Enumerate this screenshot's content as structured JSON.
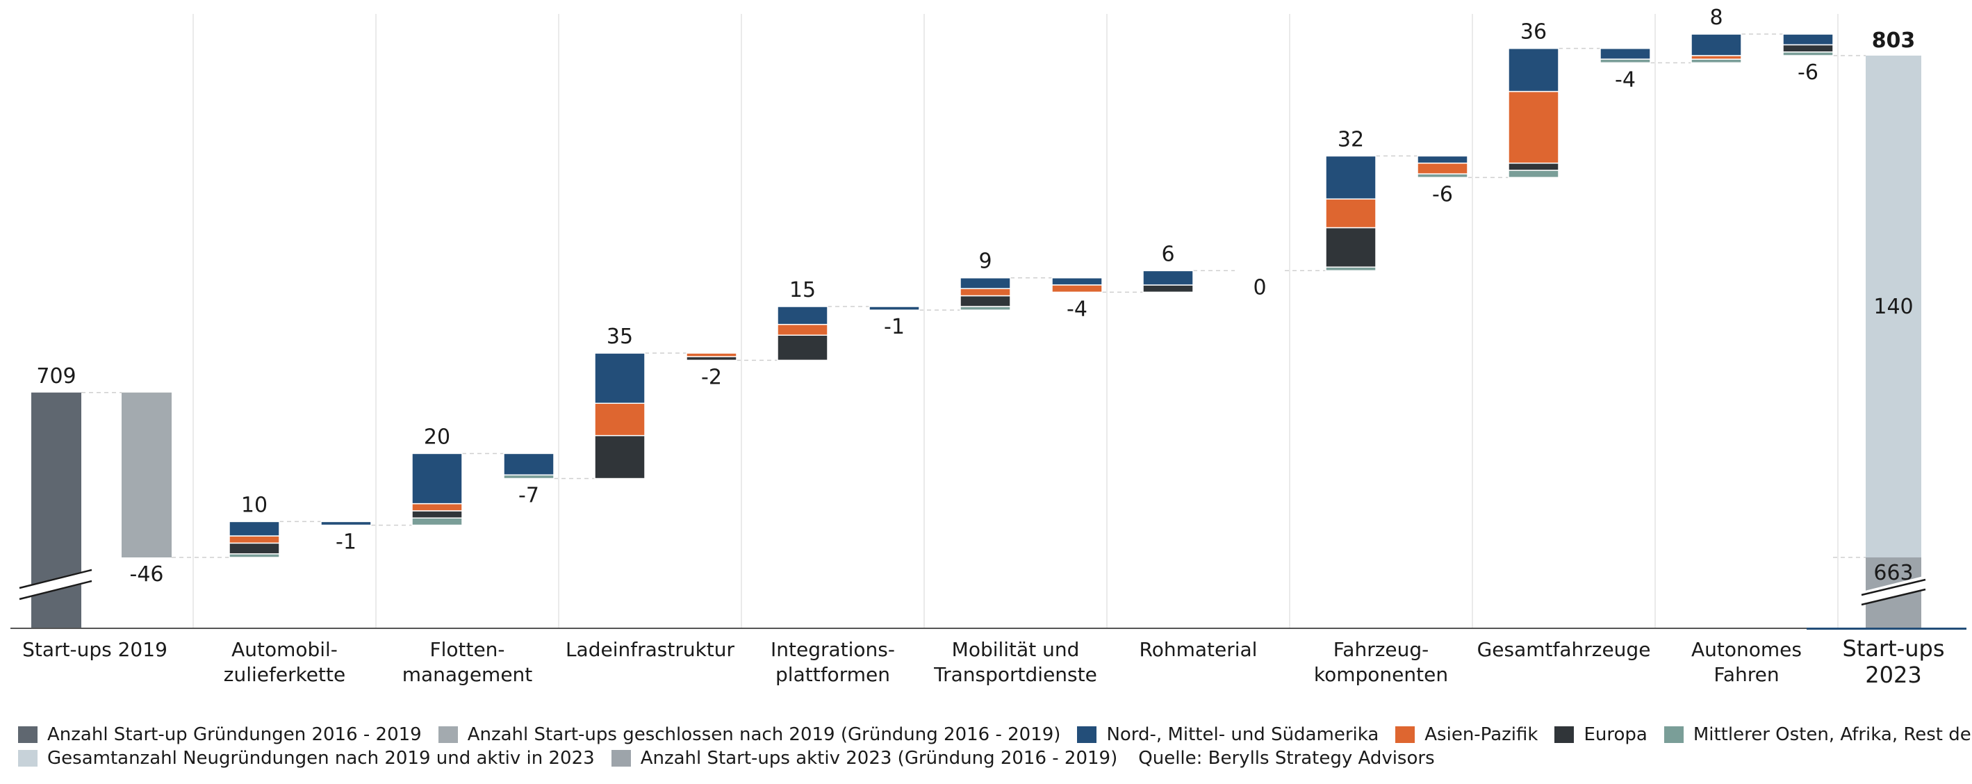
{
  "chart_data": {
    "type": "bar",
    "subtype": "waterfall",
    "categories": [
      [
        "Start-ups 2019"
      ],
      [
        "Automobil-",
        "zulieferkette"
      ],
      [
        "Flotten-",
        "management"
      ],
      [
        "Ladeinfrastruktur"
      ],
      [
        "Integrations-",
        "plattformen"
      ],
      [
        "Mobilität und",
        "Transportdienste"
      ],
      [
        "Rohmaterial"
      ],
      [
        "Fahrzeug-",
        "komponenten"
      ],
      [
        "Gesamtfahrzeuge"
      ],
      [
        "Autonomes",
        "Fahren"
      ],
      [
        "Start-ups",
        "2023"
      ]
    ],
    "start": {
      "founded_2016_2019": 709,
      "founded_label": "709",
      "closed_after_2019": -46,
      "closed_label": "-46"
    },
    "steps": [
      {
        "category_index": 1,
        "new": 10,
        "new_label": "10",
        "new_split": {
          "americas": 4,
          "apac": 2,
          "europe": 3,
          "mea_row": 1
        },
        "closed": -1,
        "closed_label": "-1",
        "closed_split": {
          "americas": 1,
          "apac": 0,
          "europe": 0,
          "mea_row": 0
        }
      },
      {
        "category_index": 2,
        "new": 20,
        "new_label": "20",
        "new_split": {
          "americas": 14,
          "apac": 2,
          "europe": 2,
          "mea_row": 2
        },
        "closed": -7,
        "closed_label": "-7",
        "closed_split": {
          "americas": 6,
          "apac": 0,
          "europe": 0,
          "mea_row": 1
        }
      },
      {
        "category_index": 3,
        "new": 35,
        "new_label": "35",
        "new_split": {
          "americas": 14,
          "apac": 9,
          "europe": 12,
          "mea_row": 0
        },
        "closed": -2,
        "closed_label": "-2",
        "closed_split": {
          "americas": 0,
          "apac": 1,
          "europe": 1,
          "mea_row": 0
        }
      },
      {
        "category_index": 4,
        "new": 15,
        "new_label": "15",
        "new_split": {
          "americas": 5,
          "apac": 3,
          "europe": 7,
          "mea_row": 0
        },
        "closed": -1,
        "closed_label": "-1",
        "closed_split": {
          "americas": 1,
          "apac": 0,
          "europe": 0,
          "mea_row": 0
        }
      },
      {
        "category_index": 5,
        "new": 9,
        "new_label": "9",
        "new_split": {
          "americas": 3,
          "apac": 2,
          "europe": 3,
          "mea_row": 1
        },
        "closed": -4,
        "closed_label": "-4",
        "closed_split": {
          "americas": 2,
          "apac": 2,
          "europe": 0,
          "mea_row": 0
        }
      },
      {
        "category_index": 6,
        "new": 6,
        "new_label": "6",
        "new_split": {
          "americas": 4,
          "apac": 0,
          "europe": 2,
          "mea_row": 0
        },
        "closed": 0,
        "closed_label": "0",
        "closed_split": {
          "americas": 0,
          "apac": 0,
          "europe": 0,
          "mea_row": 0
        }
      },
      {
        "category_index": 7,
        "new": 32,
        "new_label": "32",
        "new_split": {
          "americas": 12,
          "apac": 8,
          "europe": 11,
          "mea_row": 1
        },
        "closed": -6,
        "closed_label": "-6",
        "closed_split": {
          "americas": 2,
          "apac": 3,
          "europe": 0,
          "mea_row": 1
        }
      },
      {
        "category_index": 8,
        "new": 36,
        "new_label": "36",
        "new_split": {
          "americas": 12,
          "apac": 20,
          "europe": 2,
          "mea_row": 2
        },
        "closed": -4,
        "closed_label": "-4",
        "closed_split": {
          "americas": 3,
          "apac": 0,
          "europe": 0,
          "mea_row": 1
        }
      },
      {
        "category_index": 9,
        "new": 8,
        "new_label": "8",
        "new_split": {
          "americas": 6,
          "apac": 1,
          "europe": 0,
          "mea_row": 1
        },
        "closed": -6,
        "closed_label": "-6",
        "closed_split": {
          "americas": 3,
          "apac": 0,
          "europe": 2,
          "mea_row": 1
        }
      }
    ],
    "end": {
      "total": 803,
      "total_label": "803",
      "new_active_2023": 140,
      "new_active_label": "140",
      "active_2016_2019": 663,
      "active_label": "663"
    },
    "axis_break": true,
    "grid": "vertical-separators",
    "legend_position": "bottom"
  },
  "legend": {
    "rows": [
      [
        {
          "key": "founded",
          "label": "Anzahl Start-up Gründungen 2016 - 2019"
        },
        {
          "key": "closed",
          "label": "Anzahl Start-ups geschlossen nach 2019 (Gründung 2016 - 2019)"
        },
        {
          "key": "americas",
          "label": "Nord-, Mittel- und Südamerika"
        },
        {
          "key": "apac",
          "label": "Asien-Pazifik"
        },
        {
          "key": "europe",
          "label": "Europa"
        },
        {
          "key": "mea_row",
          "label": "Mittlerer Osten, Afrika, Rest der Welt"
        }
      ],
      [
        {
          "key": "new_active",
          "label": "Gesamtanzahl Neugründungen nach 2019 und aktiv in 2023"
        },
        {
          "key": "active",
          "label": "Anzahl Start-ups aktiv 2023 (Gründung 2016 - 2019)"
        }
      ]
    ],
    "source": "Quelle: Berylls Strategy Advisors"
  },
  "colors": {
    "founded": "#5f6770",
    "closed": "#a3aaaf",
    "americas": "#234e79",
    "apac": "#de6630",
    "europe": "#303539",
    "mea_row": "#7a9e98",
    "new_active": "#c7d2d9",
    "active": "#9da4aa",
    "separator": "#e3e3e3",
    "connector": "#cfcfcf",
    "axis": "#555555"
  }
}
